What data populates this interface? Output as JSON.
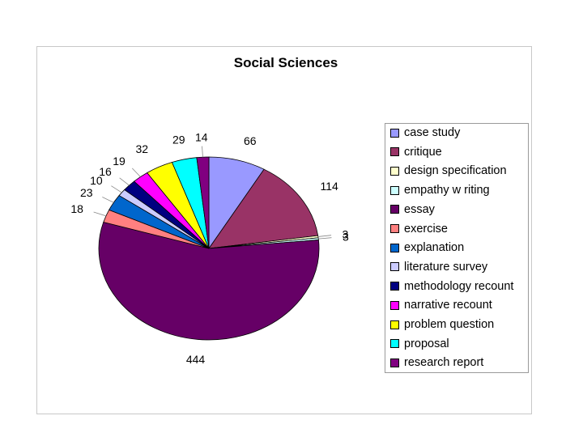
{
  "chart_data": {
    "type": "pie",
    "title": "Social Sciences",
    "categories": [
      "case study",
      "critique",
      "design specification",
      "empathy w riting",
      "essay",
      "exercise",
      "explanation",
      "literature survey",
      "methodology recount",
      "narrative recount",
      "problem question",
      "proposal",
      "research report"
    ],
    "values": [
      66,
      114,
      3,
      3,
      444,
      18,
      23,
      10,
      16,
      19,
      32,
      29,
      14
    ],
    "colors": [
      "#9999ff",
      "#993366",
      "#ffffcc",
      "#ccffff",
      "#660066",
      "#ff8080",
      "#0066cc",
      "#ccccff",
      "#000080",
      "#ff00ff",
      "#ffff00",
      "#00ffff",
      "#800080"
    ],
    "legend_position": "right"
  }
}
